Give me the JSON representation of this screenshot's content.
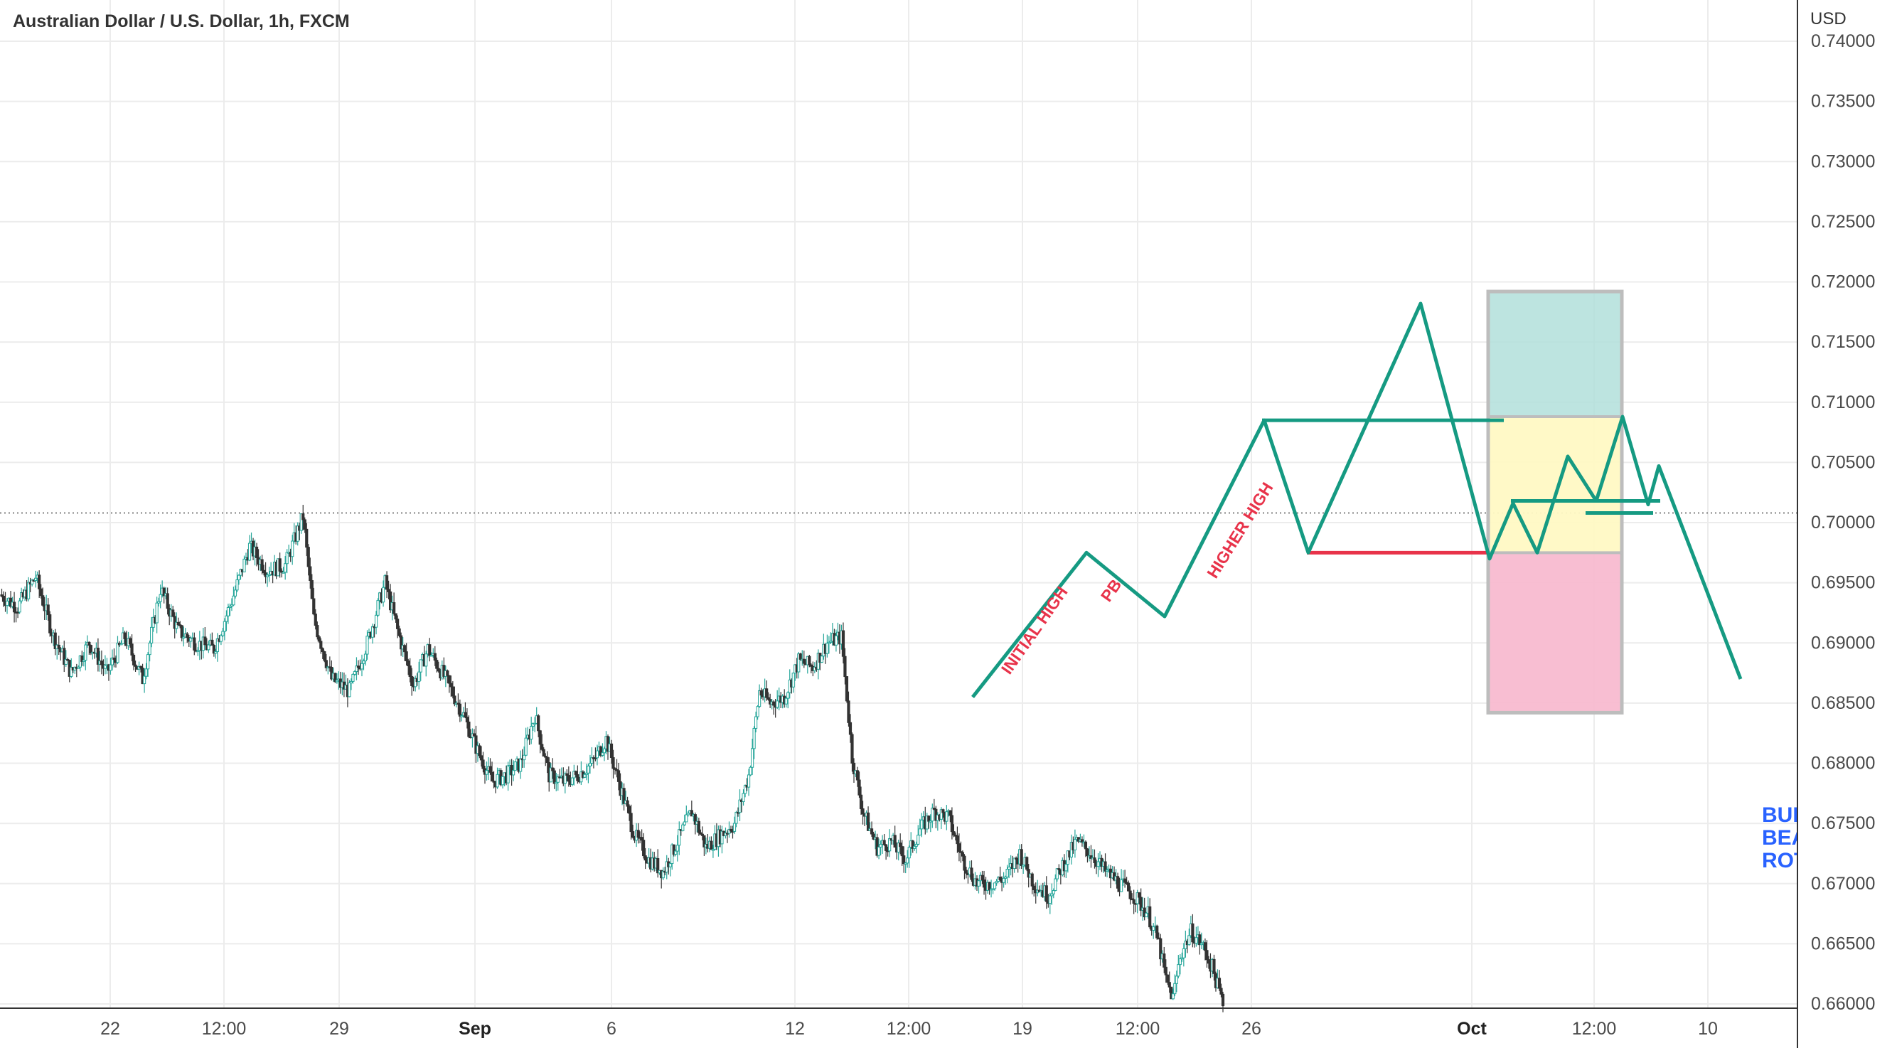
{
  "chart_data": {
    "type": "candlestick",
    "title": "Australian Dollar / U.S. Dollar, 1h, FXCM",
    "currency_label": "USD",
    "ylim": [
      0.66,
      0.74
    ],
    "y_ticks": [
      "0.74000",
      "0.73500",
      "0.73000",
      "0.72500",
      "0.72000",
      "0.71500",
      "0.71000",
      "0.70500",
      "0.70000",
      "0.69500",
      "0.69000",
      "0.68500",
      "0.68000",
      "0.67500",
      "0.67000",
      "0.66500",
      "0.66000"
    ],
    "x_ticks": [
      {
        "label": "22",
        "bold": false
      },
      {
        "label": "12:00",
        "bold": false
      },
      {
        "label": "29",
        "bold": false
      },
      {
        "label": "Sep",
        "bold": true
      },
      {
        "label": "6",
        "bold": false
      },
      {
        "label": "12",
        "bold": false
      },
      {
        "label": "12:00",
        "bold": false
      },
      {
        "label": "19",
        "bold": false
      },
      {
        "label": "12:00",
        "bold": false
      },
      {
        "label": "26",
        "bold": false
      },
      {
        "label": "Oct",
        "bold": true
      },
      {
        "label": "12:00",
        "bold": false
      },
      {
        "label": "10",
        "bold": false
      }
    ],
    "price_line": 0.7008,
    "price_path": [
      [
        0,
        0.694
      ],
      [
        5,
        0.693
      ],
      [
        10,
        0.6955
      ],
      [
        15,
        0.6905
      ],
      [
        20,
        0.6875
      ],
      [
        25,
        0.69
      ],
      [
        30,
        0.6875
      ],
      [
        35,
        0.6905
      ],
      [
        40,
        0.687
      ],
      [
        45,
        0.6945
      ],
      [
        50,
        0.691
      ],
      [
        55,
        0.69
      ],
      [
        60,
        0.6895
      ],
      [
        65,
        0.6935
      ],
      [
        70,
        0.698
      ],
      [
        75,
        0.696
      ],
      [
        80,
        0.6965
      ],
      [
        85,
        0.7005
      ],
      [
        88,
        0.692
      ],
      [
        93,
        0.687
      ],
      [
        98,
        0.686
      ],
      [
        103,
        0.69
      ],
      [
        108,
        0.695
      ],
      [
        112,
        0.6905
      ],
      [
        116,
        0.6865
      ],
      [
        120,
        0.6895
      ],
      [
        125,
        0.687
      ],
      [
        130,
        0.684
      ],
      [
        134,
        0.681
      ],
      [
        138,
        0.6785
      ],
      [
        142,
        0.679
      ],
      [
        146,
        0.68
      ],
      [
        150,
        0.684
      ],
      [
        154,
        0.679
      ],
      [
        158,
        0.6785
      ],
      [
        162,
        0.679
      ],
      [
        166,
        0.68
      ],
      [
        170,
        0.682
      ],
      [
        174,
        0.678
      ],
      [
        178,
        0.674
      ],
      [
        182,
        0.672
      ],
      [
        186,
        0.671
      ],
      [
        190,
        0.6735
      ],
      [
        194,
        0.676
      ],
      [
        198,
        0.673
      ],
      [
        202,
        0.674
      ],
      [
        206,
        0.675
      ],
      [
        210,
        0.679
      ],
      [
        213,
        0.686
      ],
      [
        216,
        0.685
      ],
      [
        220,
        0.6855
      ],
      [
        224,
        0.6885
      ],
      [
        228,
        0.688
      ],
      [
        232,
        0.69
      ],
      [
        236,
        0.6905
      ],
      [
        239,
        0.6805
      ],
      [
        242,
        0.676
      ],
      [
        246,
        0.673
      ],
      [
        250,
        0.6735
      ],
      [
        254,
        0.672
      ],
      [
        258,
        0.6745
      ],
      [
        262,
        0.676
      ],
      [
        266,
        0.6755
      ],
      [
        270,
        0.672
      ],
      [
        274,
        0.67
      ],
      [
        278,
        0.67
      ],
      [
        282,
        0.6705
      ],
      [
        286,
        0.6725
      ],
      [
        290,
        0.67
      ],
      [
        294,
        0.669
      ],
      [
        298,
        0.6715
      ],
      [
        302,
        0.6735
      ],
      [
        306,
        0.6725
      ],
      [
        310,
        0.671
      ],
      [
        314,
        0.67
      ],
      [
        318,
        0.669
      ],
      [
        322,
        0.6675
      ],
      [
        325,
        0.665
      ],
      [
        327,
        0.662
      ],
      [
        329,
        0.6605
      ],
      [
        331,
        0.664
      ],
      [
        334,
        0.666
      ],
      [
        337,
        0.665
      ],
      [
        340,
        0.663
      ],
      [
        343,
        0.66
      ]
    ],
    "drawings": {
      "projection_path": [
        [
          0.6855,
          "a"
        ],
        [
          0.6975,
          "b"
        ],
        [
          0.6922,
          "c"
        ],
        [
          0.7085,
          "d"
        ],
        [
          0.6975,
          "e"
        ],
        [
          0.7182,
          "f"
        ],
        [
          0.697,
          "g"
        ],
        [
          0.7016,
          "h"
        ],
        [
          0.6975,
          "i"
        ],
        [
          0.7055,
          "j"
        ],
        [
          0.7018,
          "k"
        ],
        [
          0.7088,
          "l"
        ],
        [
          0.7015,
          "m"
        ],
        [
          0.7047,
          "n"
        ],
        [
          0.687,
          "o"
        ]
      ],
      "resistance_level": 0.7085,
      "support_level": 0.6975,
      "small_levels": [
        0.7018,
        0.7008
      ],
      "long_position": {
        "entry": 0.6975,
        "stop": 0.6842,
        "target": 0.7192,
        "mid_zone_top": 0.7088
      },
      "zone_colors": {
        "profit": "#b2dfdb",
        "entry": "#fff9c4",
        "loss": "#f8bbd0"
      }
    },
    "annotations": [
      "INITIAL HIGH",
      "PB",
      "HIGHER HIGH"
    ],
    "side_text": [
      "BUL",
      "BEA",
      "ROT"
    ],
    "colors": {
      "up": "#26a69a",
      "down": "#333333",
      "drawing": "#159a82",
      "support": "#e8334a",
      "text_annotation": "#e8334a",
      "side_text": "#2962ff",
      "grid": "#ececec"
    }
  }
}
